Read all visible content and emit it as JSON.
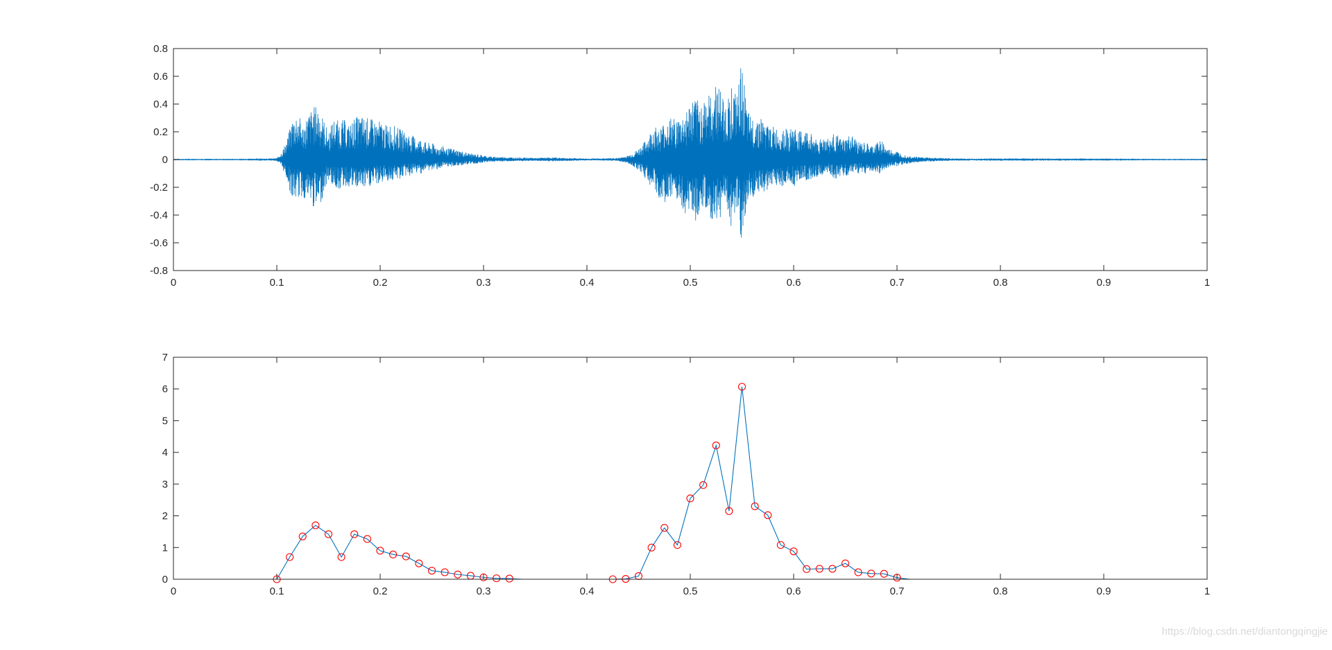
{
  "watermark": "https://blog.csdn.net/diantongqingjie",
  "colors": {
    "line": "#0072bd",
    "marker": "#ff0000",
    "axis": "#262626",
    "background": "#ffffff"
  },
  "chart_data": [
    {
      "type": "line",
      "title": "",
      "xlabel": "",
      "ylabel": "",
      "xlim": [
        0,
        1
      ],
      "ylim": [
        -0.8,
        0.8
      ],
      "grid": false,
      "xticks": [
        0,
        0.1,
        0.2,
        0.3,
        0.4,
        0.5,
        0.6,
        0.7,
        0.8,
        0.9,
        1
      ],
      "xtick_labels": [
        "0",
        "0.1",
        "0.2",
        "0.3",
        "0.4",
        "0.5",
        "0.6",
        "0.7",
        "0.8",
        "0.9",
        "1"
      ],
      "yticks": [
        -0.8,
        -0.6,
        -0.4,
        -0.2,
        0,
        0.2,
        0.4,
        0.6,
        0.8
      ],
      "ytick_labels": [
        "-0.8",
        "-0.6",
        "-0.4",
        "-0.2",
        "0",
        "0.2",
        "0.4",
        "0.6",
        "0.8"
      ],
      "series": [
        {
          "x": [
            0,
            0.02,
            0.04,
            0.06,
            0.08,
            0.1,
            0.105,
            0.11,
            0.115,
            0.12,
            0.125,
            0.13,
            0.135,
            0.14,
            0.145,
            0.15,
            0.155,
            0.16,
            0.165,
            0.17,
            0.175,
            0.18,
            0.185,
            0.19,
            0.195,
            0.2,
            0.205,
            0.21,
            0.215,
            0.22,
            0.225,
            0.23,
            0.235,
            0.24,
            0.245,
            0.25,
            0.255,
            0.26,
            0.265,
            0.27,
            0.275,
            0.28,
            0.285,
            0.29,
            0.295,
            0.3,
            0.31,
            0.32,
            0.33,
            0.34,
            0.35,
            0.36,
            0.37,
            0.38,
            0.39,
            0.4,
            0.41,
            0.42,
            0.43,
            0.44,
            0.445,
            0.45,
            0.455,
            0.46,
            0.465,
            0.47,
            0.475,
            0.48,
            0.485,
            0.49,
            0.495,
            0.5,
            0.505,
            0.51,
            0.515,
            0.52,
            0.525,
            0.53,
            0.535,
            0.54,
            0.545,
            0.55,
            0.555,
            0.56,
            0.565,
            0.57,
            0.575,
            0.58,
            0.585,
            0.59,
            0.595,
            0.6,
            0.605,
            0.61,
            0.615,
            0.62,
            0.625,
            0.63,
            0.635,
            0.64,
            0.645,
            0.65,
            0.655,
            0.66,
            0.665,
            0.67,
            0.675,
            0.68,
            0.685,
            0.69,
            0.695,
            0.7,
            0.705,
            0.71,
            0.715,
            0.72,
            0.73,
            0.74,
            0.75,
            0.76,
            0.78,
            0.8,
            0.85,
            0.9,
            0.95,
            1
          ],
          "upper": [
            0.002,
            0.002,
            0.002,
            0.002,
            0.003,
            0.01,
            0.06,
            0.15,
            0.3,
            0.35,
            0.25,
            0.33,
            0.38,
            0.4,
            0.3,
            0.2,
            0.3,
            0.28,
            0.29,
            0.25,
            0.3,
            0.32,
            0.31,
            0.3,
            0.28,
            0.28,
            0.25,
            0.26,
            0.24,
            0.22,
            0.2,
            0.18,
            0.16,
            0.15,
            0.12,
            0.12,
            0.1,
            0.1,
            0.08,
            0.08,
            0.07,
            0.06,
            0.05,
            0.04,
            0.04,
            0.03,
            0.02,
            0.02,
            0.015,
            0.015,
            0.012,
            0.015,
            0.015,
            0.012,
            0.01,
            0.008,
            0.008,
            0.01,
            0.012,
            0.03,
            0.05,
            0.08,
            0.12,
            0.18,
            0.25,
            0.22,
            0.28,
            0.3,
            0.3,
            0.3,
            0.35,
            0.42,
            0.45,
            0.4,
            0.5,
            0.45,
            0.58,
            0.5,
            0.4,
            0.55,
            0.45,
            0.72,
            0.35,
            0.3,
            0.32,
            0.3,
            0.25,
            0.24,
            0.22,
            0.25,
            0.2,
            0.25,
            0.2,
            0.22,
            0.2,
            0.17,
            0.15,
            0.18,
            0.15,
            0.2,
            0.15,
            0.15,
            0.18,
            0.15,
            0.12,
            0.12,
            0.1,
            0.12,
            0.15,
            0.08,
            0.07,
            0.06,
            0.04,
            0.03,
            0.025,
            0.02,
            0.015,
            0.012,
            0.01,
            0.008,
            0.005,
            0.004,
            0.003,
            0.003,
            0.002,
            0.002
          ],
          "lower": [
            -0.002,
            -0.002,
            -0.002,
            -0.002,
            -0.003,
            -0.01,
            -0.06,
            -0.15,
            -0.3,
            -0.28,
            -0.28,
            -0.3,
            -0.35,
            -0.38,
            -0.25,
            -0.15,
            -0.2,
            -0.22,
            -0.2,
            -0.2,
            -0.22,
            -0.2,
            -0.22,
            -0.2,
            -0.18,
            -0.18,
            -0.15,
            -0.16,
            -0.15,
            -0.14,
            -0.12,
            -0.12,
            -0.1,
            -0.1,
            -0.08,
            -0.08,
            -0.07,
            -0.06,
            -0.06,
            -0.05,
            -0.05,
            -0.04,
            -0.04,
            -0.03,
            -0.03,
            -0.02,
            -0.015,
            -0.015,
            -0.012,
            -0.012,
            -0.01,
            -0.012,
            -0.012,
            -0.01,
            -0.008,
            -0.006,
            -0.006,
            -0.008,
            -0.01,
            -0.03,
            -0.05,
            -0.08,
            -0.12,
            -0.18,
            -0.22,
            -0.3,
            -0.3,
            -0.35,
            -0.3,
            -0.35,
            -0.4,
            -0.35,
            -0.45,
            -0.35,
            -0.4,
            -0.45,
            -0.5,
            -0.4,
            -0.35,
            -0.5,
            -0.4,
            -0.72,
            -0.3,
            -0.3,
            -0.25,
            -0.25,
            -0.22,
            -0.2,
            -0.18,
            -0.2,
            -0.18,
            -0.2,
            -0.15,
            -0.15,
            -0.15,
            -0.13,
            -0.12,
            -0.12,
            -0.12,
            -0.15,
            -0.12,
            -0.12,
            -0.12,
            -0.1,
            -0.1,
            -0.1,
            -0.08,
            -0.1,
            -0.1,
            -0.06,
            -0.05,
            -0.05,
            -0.04,
            -0.03,
            -0.025,
            -0.02,
            -0.015,
            -0.012,
            -0.01,
            -0.008,
            -0.005,
            -0.004,
            -0.003,
            -0.003,
            -0.002,
            -0.002
          ]
        }
      ]
    },
    {
      "type": "line",
      "title": "",
      "xlabel": "",
      "ylabel": "",
      "xlim": [
        0,
        1
      ],
      "ylim": [
        0,
        7
      ],
      "grid": false,
      "xticks": [
        0,
        0.1,
        0.2,
        0.3,
        0.4,
        0.5,
        0.6,
        0.7,
        0.8,
        0.9,
        1
      ],
      "xtick_labels": [
        "0",
        "0.1",
        "0.2",
        "0.3",
        "0.4",
        "0.5",
        "0.6",
        "0.7",
        "0.8",
        "0.9",
        "1"
      ],
      "yticks": [
        0,
        1,
        2,
        3,
        4,
        5,
        6,
        7
      ],
      "ytick_labels": [
        "0",
        "1",
        "2",
        "3",
        "4",
        "5",
        "6",
        "7"
      ],
      "series": [
        {
          "x": [
            0.0125,
            0.025,
            0.0375,
            0.05,
            0.0625,
            0.075,
            0.0875,
            0.1,
            0.1125,
            0.125,
            0.1375,
            0.15,
            0.1625,
            0.175,
            0.1875,
            0.2,
            0.2125,
            0.225,
            0.2375,
            0.25,
            0.2625,
            0.275,
            0.2875,
            0.3,
            0.3125,
            0.325,
            0.3375,
            0.35,
            0.3625,
            0.375,
            0.3875,
            0.4,
            0.4125,
            0.425,
            0.4375,
            0.45,
            0.4625,
            0.475,
            0.4875,
            0.5,
            0.5125,
            0.525,
            0.5375,
            0.55,
            0.5625,
            0.575,
            0.5875,
            0.6,
            0.6125,
            0.625,
            0.6375,
            0.65,
            0.6625,
            0.675,
            0.6875,
            0.7,
            0.7125,
            0.725,
            0.7375,
            0.75,
            0.7625,
            0.775,
            0.7875,
            0.8,
            0.8125,
            0.825,
            0.8375,
            0.85,
            0.8625,
            0.875,
            0.8875,
            0.9,
            0.9125,
            0.925,
            0.9375,
            0.95,
            0.9625,
            0.975,
            0.9875
          ],
          "y": [
            0,
            0,
            0,
            0,
            0,
            0,
            0,
            0,
            0.7,
            1.35,
            1.7,
            1.42,
            0.7,
            1.42,
            1.27,
            0.9,
            0.78,
            0.72,
            0.5,
            0.27,
            0.22,
            0.15,
            0.11,
            0.06,
            0.03,
            0.02,
            0,
            0,
            0,
            0,
            0,
            0,
            0,
            0,
            0.01,
            0.1,
            1.0,
            1.62,
            1.08,
            2.55,
            2.97,
            4.22,
            2.15,
            6.07,
            2.3,
            2.02,
            1.08,
            0.88,
            0.32,
            0.33,
            0.33,
            0.5,
            0.22,
            0.18,
            0.17,
            0.05,
            0,
            0,
            0,
            0,
            0,
            0,
            0,
            0,
            0,
            0,
            0,
            0,
            0,
            0,
            0,
            0,
            0,
            0,
            0,
            0,
            0,
            0,
            0
          ]
        }
      ],
      "markers": {
        "style": "circle",
        "color": "#ff0000",
        "x": [
          0.1,
          0.1125,
          0.125,
          0.1375,
          0.15,
          0.1625,
          0.175,
          0.1875,
          0.2,
          0.2125,
          0.225,
          0.2375,
          0.25,
          0.2625,
          0.275,
          0.2875,
          0.3,
          0.3125,
          0.325,
          0.425,
          0.4375,
          0.45,
          0.4625,
          0.475,
          0.4875,
          0.5,
          0.5125,
          0.525,
          0.5375,
          0.55,
          0.5625,
          0.575,
          0.5875,
          0.6,
          0.6125,
          0.625,
          0.6375,
          0.65,
          0.6625,
          0.675,
          0.6875,
          0.7
        ],
        "y": [
          0,
          0.7,
          1.35,
          1.7,
          1.42,
          0.7,
          1.42,
          1.27,
          0.9,
          0.78,
          0.72,
          0.5,
          0.27,
          0.22,
          0.15,
          0.11,
          0.06,
          0.03,
          0.02,
          0,
          0.01,
          0.1,
          1.0,
          1.62,
          1.08,
          2.55,
          2.97,
          4.22,
          2.15,
          6.07,
          2.3,
          2.02,
          1.08,
          0.88,
          0.32,
          0.33,
          0.33,
          0.5,
          0.22,
          0.18,
          0.17,
          0.05
        ]
      }
    }
  ]
}
